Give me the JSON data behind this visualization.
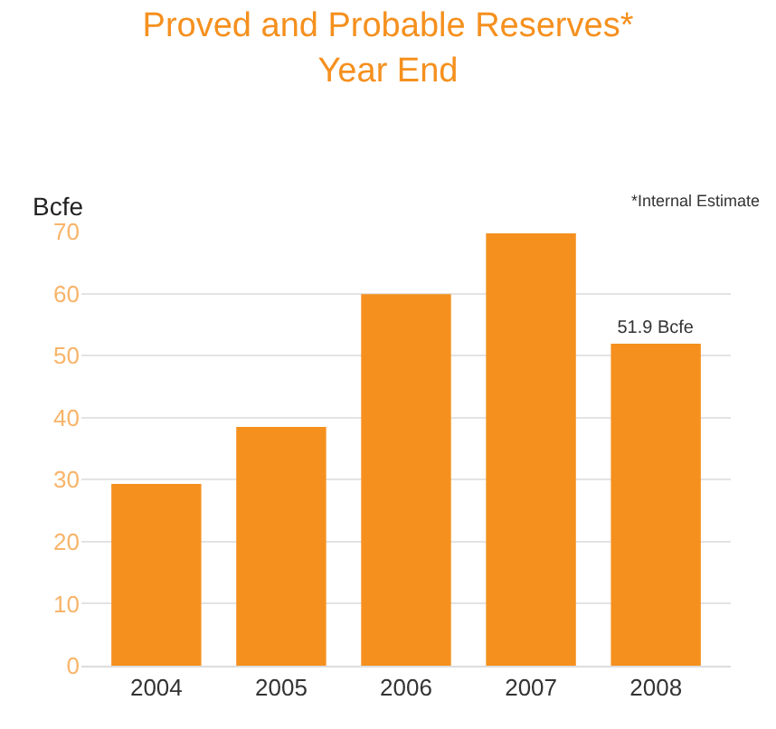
{
  "chart_data": {
    "type": "bar",
    "title": "Proved and Probable Reserves*\nYear End",
    "ylabel": "Bcfe",
    "annotations": [
      "*Internal Estimate"
    ],
    "categories": [
      "2004",
      "2005",
      "2006",
      "2007",
      "2008"
    ],
    "values": [
      29.3,
      38.5,
      59.9,
      69.7,
      51.9
    ],
    "value_labels": [
      null,
      null,
      null,
      null,
      "51.9 Bcfe"
    ],
    "color": "#f5901e",
    "ylim": [
      0,
      70
    ],
    "yticks": [
      0,
      10,
      20,
      30,
      40,
      50,
      60,
      70
    ],
    "grid": "y"
  }
}
